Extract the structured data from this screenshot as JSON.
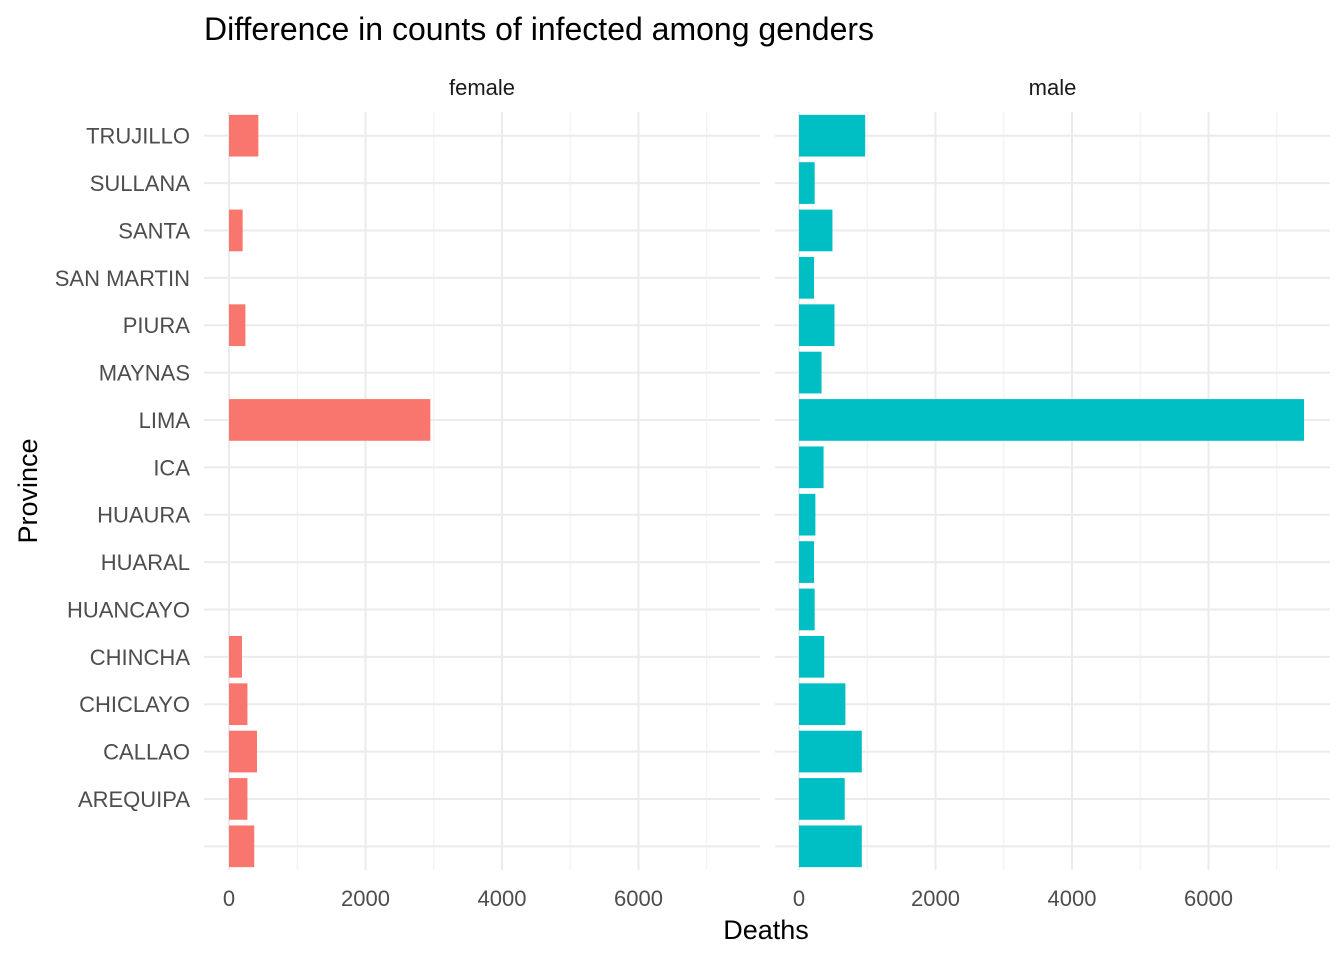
{
  "chart_data": {
    "type": "bar",
    "orientation": "horizontal",
    "title": "Difference in counts of infected among genders",
    "xlabel": "Deaths",
    "ylabel": "Province",
    "xlim": [
      0,
      7400
    ],
    "x_ticks": [
      0,
      2000,
      4000,
      6000
    ],
    "x_tick_labels": [
      "0",
      "2000",
      "4000",
      "6000"
    ],
    "grid": true,
    "legend": "none",
    "categories": [
      "",
      "AREQUIPA",
      "CALLAO",
      "CHICLAYO",
      "CHINCHA",
      "HUANCAYO",
      "HUARAL",
      "HUAURA",
      "ICA",
      "LIMA",
      "MAYNAS",
      "PIURA",
      "SAN MARTIN",
      "SANTA",
      "SULLANA",
      "TRUJILLO"
    ],
    "panels": [
      {
        "name": "female",
        "color": "#F8766D",
        "values": [
          370,
          270,
          410,
          270,
          190,
          0,
          0,
          0,
          0,
          2950,
          0,
          240,
          0,
          200,
          0,
          430
        ]
      },
      {
        "name": "male",
        "color": "#00BFC4",
        "values": [
          920,
          670,
          920,
          680,
          370,
          230,
          220,
          240,
          360,
          7400,
          330,
          520,
          220,
          490,
          230,
          970
        ]
      }
    ]
  }
}
